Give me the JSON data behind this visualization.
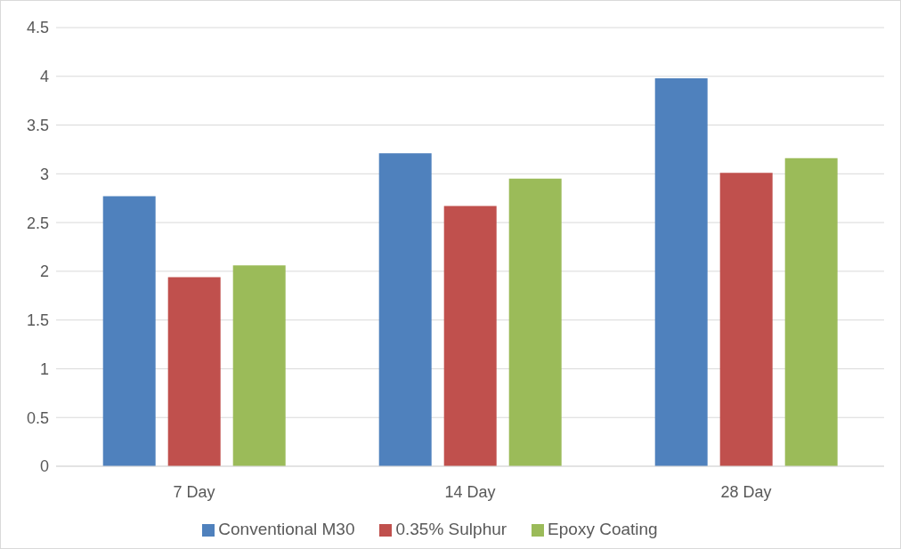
{
  "chart_data": {
    "type": "bar",
    "categories": [
      "7 Day",
      "14 Day",
      "28 Day"
    ],
    "series": [
      {
        "name": "Conventional M30",
        "color": "#4f81bd",
        "values": [
          2.77,
          3.21,
          3.98
        ]
      },
      {
        "name": "0.35% Sulphur",
        "color": "#c0504d",
        "values": [
          1.94,
          2.67,
          3.01
        ]
      },
      {
        "name": "Epoxy Coating",
        "color": "#9bbb59",
        "values": [
          2.06,
          2.95,
          3.16
        ]
      }
    ],
    "ylim": [
      0,
      4.5
    ],
    "yticks": [
      0,
      0.5,
      1,
      1.5,
      2,
      2.5,
      3,
      3.5,
      4,
      4.5
    ],
    "grid": "y",
    "legend": "bottom"
  }
}
